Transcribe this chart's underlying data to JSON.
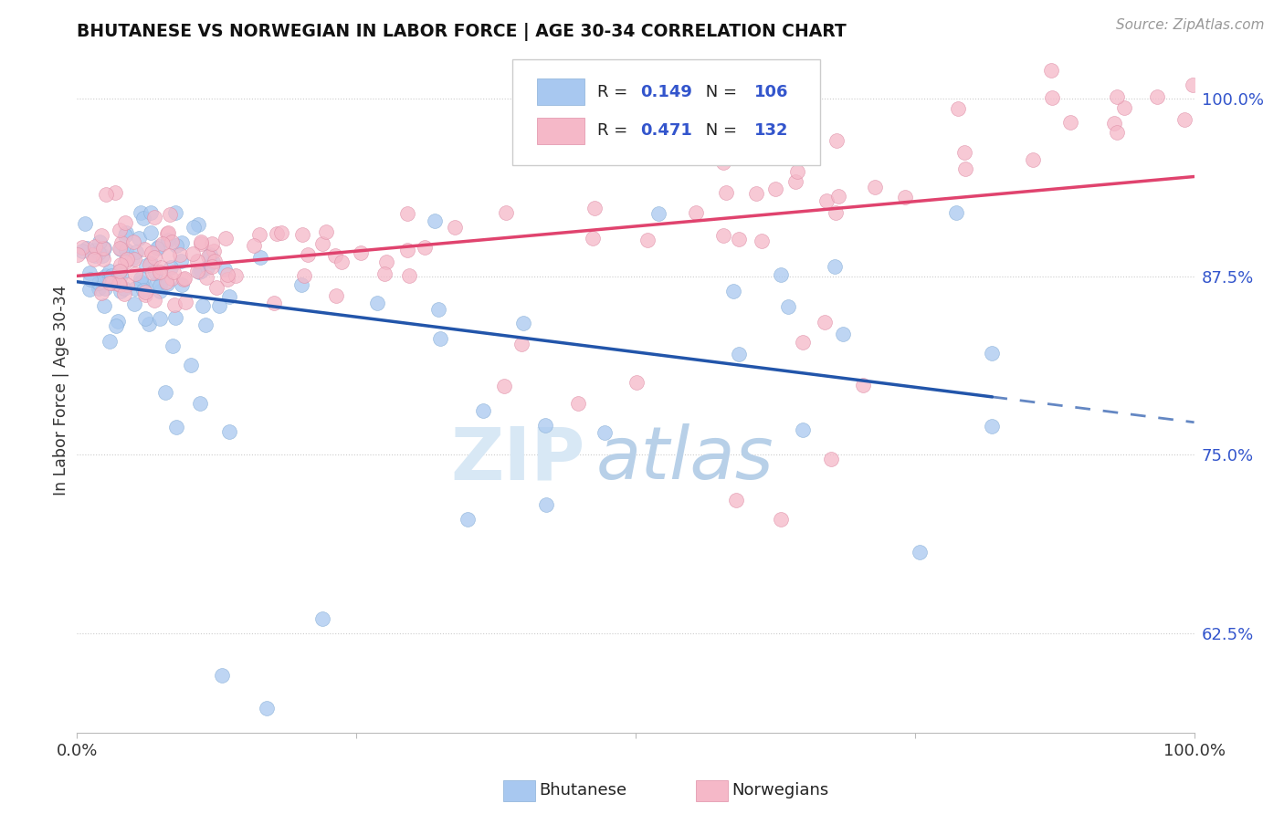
{
  "title": "BHUTANESE VS NORWEGIAN IN LABOR FORCE | AGE 30-34 CORRELATION CHART",
  "source": "Source: ZipAtlas.com",
  "ylabel": "In Labor Force | Age 30-34",
  "ytick_values": [
    0.625,
    0.75,
    0.875,
    1.0
  ],
  "xlim": [
    0.0,
    1.0
  ],
  "ylim": [
    0.555,
    1.035
  ],
  "bhutanese_color": "#a8c8f0",
  "norwegian_color": "#f5b8c8",
  "bhutanese_line_color": "#2255aa",
  "norwegian_line_color": "#e0436e",
  "bhutanese_R": 0.149,
  "bhutanese_N": 106,
  "norwegian_R": 0.471,
  "norwegian_N": 132,
  "watermark_zip_color": "#d8e8f5",
  "watermark_atlas_color": "#b8d0e8"
}
